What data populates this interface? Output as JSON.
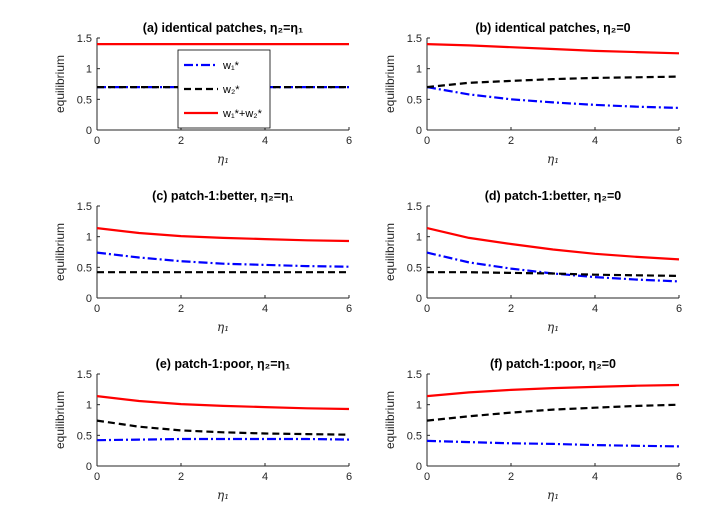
{
  "colors": {
    "w1": "#0000ff",
    "w2": "#000000",
    "sum": "#ff0000",
    "axis": "#262626",
    "box": "#000000"
  },
  "legend": {
    "w1": "w₁*",
    "w2": "w₂*",
    "sum": "w₁*+w₂*"
  },
  "chart_data": [
    {
      "type": "line",
      "title": "(a) identical patches, η₂=η₁",
      "xlabel": "η₁",
      "ylabel": "equilibrium",
      "xlim": [
        0,
        6
      ],
      "ylim": [
        0,
        1.5
      ],
      "xticks": [
        0,
        2,
        4,
        6
      ],
      "xtick_labels": [
        "0",
        "2",
        "4",
        "6"
      ],
      "yticks": [
        0,
        0.5,
        1,
        1.5
      ],
      "ytick_labels": [
        "0",
        "0.5",
        "1",
        "1.5"
      ],
      "legend_position": "top-center",
      "x": [
        0,
        1,
        2,
        3,
        4,
        5,
        6
      ],
      "series": [
        {
          "name": "w1",
          "values": [
            0.7,
            0.7,
            0.7,
            0.7,
            0.7,
            0.7,
            0.7
          ]
        },
        {
          "name": "w2",
          "values": [
            0.7,
            0.7,
            0.7,
            0.7,
            0.7,
            0.7,
            0.7
          ]
        },
        {
          "name": "sum",
          "values": [
            1.4,
            1.4,
            1.4,
            1.4,
            1.4,
            1.4,
            1.4
          ]
        }
      ]
    },
    {
      "type": "line",
      "title": "(b) identical patches, η₂=0",
      "xlabel": "η₁",
      "ylabel": "equilibrium",
      "xlim": [
        0,
        6
      ],
      "ylim": [
        0,
        1.5
      ],
      "xticks": [
        0,
        2,
        4,
        6
      ],
      "xtick_labels": [
        "0",
        "2",
        "4",
        "6"
      ],
      "yticks": [
        0,
        0.5,
        1,
        1.5
      ],
      "ytick_labels": [
        "0",
        "0.5",
        "1",
        "1.5"
      ],
      "x": [
        0,
        1,
        2,
        3,
        4,
        5,
        6
      ],
      "series": [
        {
          "name": "w1",
          "values": [
            0.7,
            0.58,
            0.5,
            0.45,
            0.41,
            0.38,
            0.36
          ]
        },
        {
          "name": "w2",
          "values": [
            0.7,
            0.77,
            0.8,
            0.83,
            0.85,
            0.86,
            0.87
          ]
        },
        {
          "name": "sum",
          "values": [
            1.4,
            1.38,
            1.35,
            1.32,
            1.29,
            1.27,
            1.25
          ]
        }
      ]
    },
    {
      "type": "line",
      "title": "(c) patch-1:better, η₂=η₁",
      "xlabel": "η₁",
      "ylabel": "equilibrium",
      "xlim": [
        0,
        6
      ],
      "ylim": [
        0,
        1.5
      ],
      "xticks": [
        0,
        2,
        4,
        6
      ],
      "xtick_labels": [
        "0",
        "2",
        "4",
        "6"
      ],
      "yticks": [
        0,
        0.5,
        1,
        1.5
      ],
      "ytick_labels": [
        "0",
        "0.5",
        "1",
        "1.5"
      ],
      "x": [
        0,
        1,
        2,
        3,
        4,
        5,
        6
      ],
      "series": [
        {
          "name": "w1",
          "values": [
            0.74,
            0.66,
            0.6,
            0.56,
            0.54,
            0.52,
            0.51
          ]
        },
        {
          "name": "w2",
          "values": [
            0.42,
            0.42,
            0.42,
            0.42,
            0.42,
            0.42,
            0.42
          ]
        },
        {
          "name": "sum",
          "values": [
            1.14,
            1.06,
            1.01,
            0.98,
            0.96,
            0.94,
            0.93
          ]
        }
      ]
    },
    {
      "type": "line",
      "title": "(d) patch-1:better, η₂=0",
      "xlabel": "η₁",
      "ylabel": "equilibrium",
      "xlim": [
        0,
        6
      ],
      "ylim": [
        0,
        1.5
      ],
      "xticks": [
        0,
        2,
        4,
        6
      ],
      "xtick_labels": [
        "0",
        "2",
        "4",
        "6"
      ],
      "yticks": [
        0,
        0.5,
        1,
        1.5
      ],
      "ytick_labels": [
        "0",
        "0.5",
        "1",
        "1.5"
      ],
      "x": [
        0,
        1,
        2,
        3,
        4,
        5,
        6
      ],
      "series": [
        {
          "name": "w1",
          "values": [
            0.74,
            0.58,
            0.48,
            0.4,
            0.34,
            0.3,
            0.27
          ]
        },
        {
          "name": "w2",
          "values": [
            0.42,
            0.42,
            0.41,
            0.4,
            0.38,
            0.37,
            0.36
          ]
        },
        {
          "name": "sum",
          "values": [
            1.14,
            0.98,
            0.88,
            0.79,
            0.72,
            0.67,
            0.63
          ]
        }
      ]
    },
    {
      "type": "line",
      "title": "(e) patch-1:poor, η₂=η₁",
      "xlabel": "η₁",
      "ylabel": "equilibrium",
      "xlim": [
        0,
        6
      ],
      "ylim": [
        0,
        1.5
      ],
      "xticks": [
        0,
        2,
        4,
        6
      ],
      "xtick_labels": [
        "0",
        "2",
        "4",
        "6"
      ],
      "yticks": [
        0,
        0.5,
        1,
        1.5
      ],
      "ytick_labels": [
        "0",
        "0.5",
        "1",
        "1.5"
      ],
      "x": [
        0,
        1,
        2,
        3,
        4,
        5,
        6
      ],
      "series": [
        {
          "name": "w1",
          "values": [
            0.42,
            0.43,
            0.44,
            0.44,
            0.44,
            0.44,
            0.43
          ]
        },
        {
          "name": "w2",
          "values": [
            0.74,
            0.64,
            0.58,
            0.55,
            0.53,
            0.52,
            0.51
          ]
        },
        {
          "name": "sum",
          "values": [
            1.14,
            1.06,
            1.01,
            0.98,
            0.96,
            0.94,
            0.93
          ]
        }
      ]
    },
    {
      "type": "line",
      "title": "(f) patch-1:poor, η₂=0",
      "xlabel": "η₁",
      "ylabel": "equilibrium",
      "xlim": [
        0,
        6
      ],
      "ylim": [
        0,
        1.5
      ],
      "xticks": [
        0,
        2,
        4,
        6
      ],
      "xtick_labels": [
        "0",
        "2",
        "4",
        "6"
      ],
      "yticks": [
        0,
        0.5,
        1,
        1.5
      ],
      "ytick_labels": [
        "0",
        "0.5",
        "1",
        "1.5"
      ],
      "x": [
        0,
        1,
        2,
        3,
        4,
        5,
        6
      ],
      "series": [
        {
          "name": "w1",
          "values": [
            0.41,
            0.39,
            0.37,
            0.36,
            0.34,
            0.33,
            0.32
          ]
        },
        {
          "name": "w2",
          "values": [
            0.74,
            0.81,
            0.87,
            0.92,
            0.95,
            0.98,
            1.0
          ]
        },
        {
          "name": "sum",
          "values": [
            1.14,
            1.2,
            1.24,
            1.27,
            1.29,
            1.31,
            1.32
          ]
        }
      ]
    }
  ]
}
